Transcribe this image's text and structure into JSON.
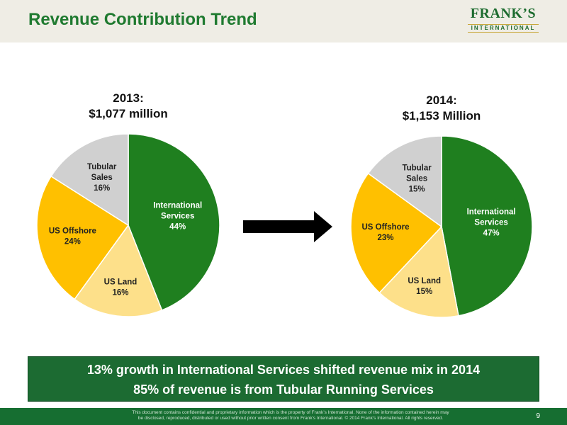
{
  "header": {
    "title": "Revenue Contribution Trend",
    "logo_top": "FRANK’S",
    "logo_bottom": "INTERNATIONAL"
  },
  "colors": {
    "international_services": "#1f7f1f",
    "us_land": "#fde08a",
    "us_offshore": "#ffc000",
    "tubular_sales": "#d0d0d0",
    "banner": "#1c6b32",
    "title": "#1f7a30"
  },
  "chart_data": [
    {
      "type": "pie",
      "title_line1": "2013:",
      "title_line2": "$1,077 million",
      "slices": [
        {
          "label": "International Services",
          "label_lines": [
            "International",
            "Services"
          ],
          "pct_label": "44%",
          "value": 44,
          "color": "#1f7f1f",
          "label_color": "#ffffff"
        },
        {
          "label": "US Land",
          "label_lines": [
            "US Land"
          ],
          "pct_label": "16%",
          "value": 16,
          "color": "#fde08a",
          "label_color": "#222222"
        },
        {
          "label": "US Offshore",
          "label_lines": [
            "US Offshore"
          ],
          "pct_label": "24%",
          "value": 24,
          "color": "#ffc000",
          "label_color": "#222222"
        },
        {
          "label": "Tubular Sales",
          "label_lines": [
            "Tubular",
            "Sales"
          ],
          "pct_label": "16%",
          "value": 16,
          "color": "#d0d0d0",
          "label_color": "#222222"
        }
      ]
    },
    {
      "type": "pie",
      "title_line1": "2014:",
      "title_line2": "$1,153 Million",
      "slices": [
        {
          "label": "International Services",
          "label_lines": [
            "International",
            "Services"
          ],
          "pct_label": "47%",
          "value": 47,
          "color": "#1f7f1f",
          "label_color": "#ffffff"
        },
        {
          "label": "US Land",
          "label_lines": [
            "US Land"
          ],
          "pct_label": "15%",
          "value": 15,
          "color": "#fde08a",
          "label_color": "#222222"
        },
        {
          "label": "US Offshore",
          "label_lines": [
            "US Offshore"
          ],
          "pct_label": "23%",
          "value": 23,
          "color": "#ffc000",
          "label_color": "#222222"
        },
        {
          "label": "Tubular Sales",
          "label_lines": [
            "Tubular",
            "Sales"
          ],
          "pct_label": "15%",
          "value": 15,
          "color": "#d0d0d0",
          "label_color": "#222222"
        }
      ]
    }
  ],
  "banner": {
    "line1": "13% growth in International Services shifted revenue mix in 2014",
    "line2": "85% of revenue is from Tubular Running Services"
  },
  "footer": {
    "line1": "This document contains confidential and proprietary information which is the property of Frank’s International.  None of the information contained herein may",
    "line2": "be disclosed, reproduced, distributed or used without prior written consent from Frank’s International. © 2014 Frank’s International.   All rights reserved.",
    "page_number": "9"
  }
}
